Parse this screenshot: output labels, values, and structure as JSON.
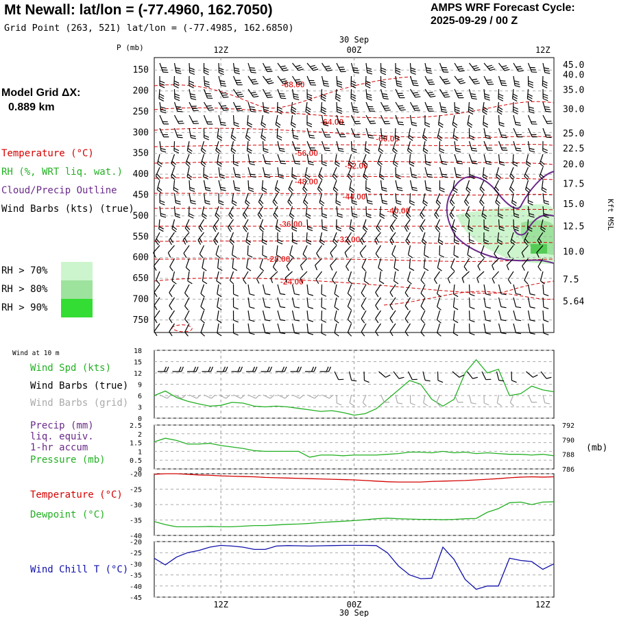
{
  "header": {
    "station": "Mt Newall:  lat/lon = (-77.4960, 162.7050)",
    "grid_point": "Grid Point (263, 521) lat/lon = (-77.4985, 162.6850)",
    "forecast_line1": "AMPS WRF Forecast Cycle:",
    "forecast_line2": "2025-09-29 / 00  Z"
  },
  "left_panel": {
    "model_grid_title": "Model Grid ΔX:",
    "model_grid_value": "0.889 km",
    "legend": [
      {
        "label": "Temperature (°C)",
        "color": "#d40000"
      },
      {
        "label": "RH (%, WRT liq. wat.)",
        "color": "#22b022"
      },
      {
        "label": "Cloud/Precip Outline",
        "color": "#6a2a8a"
      },
      {
        "label": "Wind Barbs (kts) (true)",
        "color": "#000000"
      }
    ],
    "rh_legend": [
      {
        "label": "RH > 70%",
        "color": "#cdf5cd"
      },
      {
        "label": "RH > 80%",
        "color": "#9de29d"
      },
      {
        "label": "RH > 90%",
        "color": "#33dd33"
      }
    ]
  },
  "axis": {
    "time_ticks": [
      "12Z",
      "00Z",
      "12Z"
    ],
    "date_label": "30 Sep",
    "p_label": "P (mb)",
    "kft_label": "Kft MSL",
    "wind10_label": "Wind at 10 m",
    "pmb_label": "(mb)"
  },
  "panel_labels": {
    "wind": [
      {
        "label": "Wind Spd (kts)",
        "color": "#22b022"
      },
      {
        "label": "Wind Barbs (true)",
        "color": "#000000"
      },
      {
        "label": "Wind Barbs (grid)",
        "color": "#aaaaaa"
      }
    ],
    "precip": [
      {
        "label": "Precip (mm)",
        "color": "#6a2a8a"
      },
      {
        "label": "liq. equiv.",
        "color": "#6a2a8a"
      },
      {
        "label": "1-hr accum",
        "color": "#6a2a8a"
      },
      {
        "label": "Pressure (mb)",
        "color": "#22b022"
      }
    ],
    "temp": [
      {
        "label": "Temperature (°C)",
        "color": "#d40000"
      },
      {
        "label": "Dewpoint (°C)",
        "color": "#22b022"
      }
    ],
    "chill": [
      {
        "label": "Wind Chill T (°C)",
        "color": "#1010aa"
      }
    ]
  },
  "chart_data": [
    {
      "type": "contour",
      "name": "cross-section",
      "x_range_hours": [
        0,
        36
      ],
      "x_ticks_hours": [
        6,
        18,
        30
      ],
      "y_label": "P (mb)",
      "pressure_range": [
        120,
        780
      ],
      "pressure_ticks": [
        150,
        200,
        250,
        300,
        350,
        400,
        450,
        500,
        550,
        600,
        650,
        700,
        750
      ],
      "height_ticks_kft": [
        {
          "label": "45.0",
          "p": 138
        },
        {
          "label": "40.0",
          "p": 162
        },
        {
          "label": "35.0",
          "p": 198
        },
        {
          "label": "30.0",
          "p": 244
        },
        {
          "label": "25.0",
          "p": 303
        },
        {
          "label": "22.5",
          "p": 339
        },
        {
          "label": "20.0",
          "p": 377
        },
        {
          "label": "17.5",
          "p": 424
        },
        {
          "label": "15.0",
          "p": 472
        },
        {
          "label": "12.5",
          "p": 526
        },
        {
          "label": "10.0",
          "p": 587
        },
        {
          "label": "7.5",
          "p": 653
        },
        {
          "label": "5.64",
          "p": 706
        }
      ],
      "temperature_labels": [
        {
          "text": "-68.00",
          "t": 12.5,
          "p": 185
        },
        {
          "text": "-64.00",
          "t": 16.0,
          "p": 275
        },
        {
          "text": "-60.00",
          "t": 21.0,
          "p": 315
        },
        {
          "text": "-56.00",
          "t": 13.7,
          "p": 350
        },
        {
          "text": "-52.00",
          "t": 18.2,
          "p": 380
        },
        {
          "text": "-48.00",
          "t": 13.7,
          "p": 418
        },
        {
          "text": "-44.00",
          "t": 18.0,
          "p": 454
        },
        {
          "text": "-40.00",
          "t": 22.0,
          "p": 488
        },
        {
          "text": "-36.00",
          "t": 12.3,
          "p": 520
        },
        {
          "text": "-32.00",
          "t": 17.5,
          "p": 557
        },
        {
          "text": "-28.00",
          "t": 11.2,
          "p": 604
        },
        {
          "text": "-24.00",
          "t": 12.4,
          "p": 658
        }
      ]
    },
    {
      "type": "line",
      "name": "wind-speed",
      "title": "Wind Spd (kts)",
      "x_hours": [
        0,
        1,
        2,
        3,
        4,
        5,
        6,
        7,
        8,
        9,
        10,
        11,
        12,
        13,
        14,
        15,
        16,
        17,
        18,
        19,
        20,
        21,
        22,
        23,
        24,
        25,
        26,
        27,
        28,
        29,
        30,
        31,
        32,
        33,
        34,
        35,
        36
      ],
      "series": [
        {
          "name": "Wind Spd (kts)",
          "color": "#22b022",
          "values": [
            6,
            7.2,
            5.5,
            4.5,
            3.8,
            3.2,
            3.4,
            4.2,
            4.0,
            3.2,
            3.0,
            3.2,
            3.0,
            2.6,
            2.2,
            1.8,
            2.0,
            1.5,
            0.8,
            1.2,
            2.5,
            5.0,
            7.5,
            10.0,
            9.0,
            5.0,
            3.2,
            5.0,
            12.0,
            15.5,
            12.0,
            13.0,
            6.0,
            6.5,
            8.5,
            7.5,
            7.0
          ]
        }
      ],
      "y_range": [
        0,
        18
      ],
      "y_ticks": [
        0,
        3,
        6,
        9,
        12,
        15,
        18
      ]
    },
    {
      "type": "line",
      "name": "precip-pressure",
      "x_hours": [
        0,
        1,
        2,
        3,
        4,
        5,
        6,
        7,
        8,
        9,
        10,
        11,
        12,
        13,
        14,
        15,
        16,
        17,
        18,
        19,
        20,
        21,
        22,
        23,
        24,
        25,
        26,
        27,
        28,
        29,
        30,
        31,
        32,
        33,
        34,
        35,
        36
      ],
      "series": [
        {
          "name": "Pressure (mb)",
          "color": "#22b022",
          "values": [
            789.7,
            790.2,
            789.9,
            789.4,
            789.4,
            789.5,
            789.2,
            789.0,
            788.8,
            788.5,
            788.4,
            788.4,
            788.4,
            788.4,
            787.6,
            787.9,
            787.9,
            787.8,
            787.9,
            787.9,
            787.9,
            788.0,
            788.1,
            788.3,
            788.3,
            788.2,
            788.4,
            788.2,
            788.3,
            788.1,
            788.2,
            788.1,
            788.0,
            788.0,
            787.9,
            788.0,
            787.8
          ]
        }
      ],
      "y_left_range": [
        0,
        2.5
      ],
      "y_left_ticks": [
        0,
        0.5,
        1,
        1.5,
        2,
        2.5
      ],
      "y_right_range": [
        786,
        792
      ],
      "y_right_ticks": [
        786,
        788,
        790,
        792
      ]
    },
    {
      "type": "line",
      "name": "temp-dewpoint",
      "x_hours": [
        0,
        1,
        2,
        3,
        4,
        5,
        6,
        7,
        8,
        9,
        10,
        11,
        12,
        13,
        14,
        15,
        16,
        17,
        18,
        19,
        20,
        21,
        22,
        23,
        24,
        25,
        26,
        27,
        28,
        29,
        30,
        31,
        32,
        33,
        34,
        35,
        36
      ],
      "series": [
        {
          "name": "Temperature (°C)",
          "color": "#d40000",
          "values": [
            -20.2,
            -20.0,
            -20.0,
            -20.2,
            -20.4,
            -20.5,
            -20.7,
            -20.8,
            -20.9,
            -21.0,
            -21.2,
            -21.3,
            -21.4,
            -21.5,
            -21.6,
            -21.7,
            -21.8,
            -21.9,
            -22.0,
            -22.2,
            -22.4,
            -22.6,
            -22.7,
            -22.7,
            -22.7,
            -22.5,
            -22.4,
            -22.3,
            -22.2,
            -22.0,
            -21.8,
            -21.6,
            -21.3,
            -21.1,
            -21.0,
            -21.1,
            -21.0
          ]
        },
        {
          "name": "Dewpoint (°C)",
          "color": "#22b022",
          "values": [
            -35.5,
            -36.5,
            -37.2,
            -37.2,
            -37.2,
            -37.1,
            -37.2,
            -37.2,
            -37.0,
            -36.8,
            -36.8,
            -36.6,
            -36.4,
            -36.3,
            -36.1,
            -35.8,
            -35.6,
            -35.4,
            -35.2,
            -34.9,
            -34.6,
            -34.4,
            -34.6,
            -34.7,
            -34.8,
            -34.8,
            -34.9,
            -34.8,
            -34.6,
            -34.5,
            -32.5,
            -31.3,
            -29.4,
            -29.2,
            -30.0,
            -29.2,
            -29.1
          ]
        }
      ],
      "y_range": [
        -40,
        -20
      ],
      "y_ticks": [
        -40,
        -35,
        -30,
        -25,
        -20
      ]
    },
    {
      "type": "line",
      "name": "wind-chill",
      "x_hours": [
        0,
        1,
        2,
        3,
        4,
        5,
        6,
        7,
        8,
        9,
        10,
        11,
        12,
        13,
        14,
        15,
        16,
        17,
        18,
        19,
        20,
        21,
        22,
        23,
        24,
        25,
        26,
        27,
        28,
        29,
        30,
        31,
        32,
        33,
        34,
        35,
        36
      ],
      "series": [
        {
          "name": "Wind Chill T (°C)",
          "color": "#1010aa",
          "values": [
            -27.5,
            -30.5,
            -27.0,
            -25.0,
            -24.0,
            -22.5,
            -21.7,
            -22.0,
            -22.5,
            -23.5,
            -23.5,
            -22.0,
            -21.8,
            -21.9,
            -22.0,
            -21.9,
            -21.8,
            -21.7,
            -21.7,
            -21.7,
            -21.8,
            -25.0,
            -31.0,
            -35.0,
            -36.7,
            -36.5,
            -22.5,
            -28.0,
            -37.0,
            -41.5,
            -40.0,
            -40.0,
            -27.5,
            -28.5,
            -29.0,
            -32.5,
            -30.0
          ]
        }
      ],
      "y_range": [
        -45,
        -20
      ],
      "y_ticks": [
        -45,
        -40,
        -35,
        -30,
        -25,
        -20
      ]
    }
  ]
}
